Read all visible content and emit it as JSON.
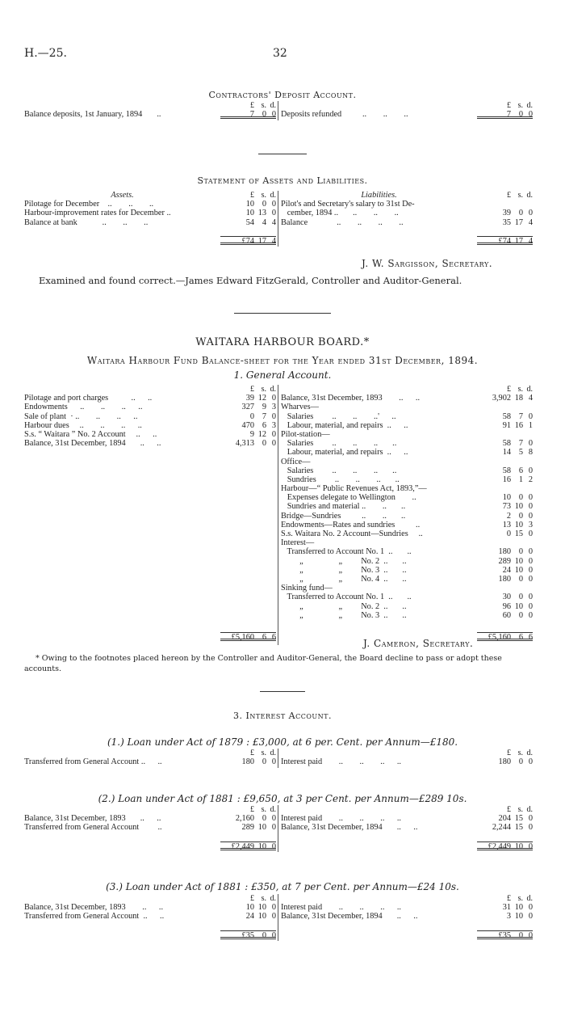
{
  "header": {
    "ref": "H.—25.",
    "page": "32"
  },
  "contractors": {
    "title": "Contractors' Deposit Account.",
    "left": [
      {
        "h": true
      },
      {
        "t": "Balance deposits, 1st January, 1894       ..",
        "a": [
          "7",
          "0",
          "0"
        ],
        "dbl": true
      }
    ],
    "right": [
      {
        "h": true
      },
      {
        "t": "Deposits refunded          ..        ..        ..",
        "a": [
          "7",
          "0",
          "0"
        ],
        "dbl": true
      }
    ]
  },
  "statement": {
    "title": "Statement of Assets and Liabilities.",
    "left": [
      {
        "h": true,
        "t": "Assets."
      },
      {
        "t": "Pilotage for December    ..        ..        ..",
        "a": [
          "10",
          "0",
          "0"
        ]
      },
      {
        "t": "Harbour-improvement rates for December ..",
        "a": [
          "10",
          "13",
          "0"
        ]
      },
      {
        "t": "Balance at bank            ..        ..        ..",
        "a": [
          "54",
          "4",
          "4"
        ]
      },
      {
        "t": ""
      },
      {
        "t": "",
        "a": [
          "£74",
          "17",
          "4"
        ],
        "top": true,
        "dbl": true
      }
    ],
    "right": [
      {
        "h": true,
        "t": "Liabilities."
      },
      {
        "t": "Pilot's and Secretary's salary to 31st De-"
      },
      {
        "t": "   cember, 1894 ..       ..        ..        ..",
        "a": [
          "39",
          "0",
          "0"
        ]
      },
      {
        "t": "Balance              ..        ..        ..        ..",
        "a": [
          "35",
          "17",
          "4"
        ]
      },
      {
        "t": ""
      },
      {
        "t": "",
        "a": [
          "£74",
          "17",
          "4"
        ],
        "top": true,
        "dbl": true
      }
    ],
    "signature": "J. W. Sargisson, Secretary.",
    "examined": "Examined and found correct.—James Edward FitzGerald, Controller and Auditor-General."
  },
  "waitara": {
    "board": "WAITARA HARBOUR BOARD.*",
    "title": "Waitara Harbour Fund Balance-sheet for the Year ended 31st December, 1894.",
    "subtitle": "1. General Account.",
    "left": [
      {
        "h": true
      },
      {
        "t": "Pilotage and port charges           ..      ..",
        "a": [
          "39",
          "12",
          "0"
        ]
      },
      {
        "t": "Endowments      ..        ..        ..      ..",
        "a": [
          "327",
          "9",
          "3"
        ]
      },
      {
        "t": "Sale of plant  · ..        ..        ..      ..",
        "a": [
          "0",
          "7",
          "0"
        ]
      },
      {
        "t": "Harbour dues     ..        ..        ..      ..",
        "a": [
          "470",
          "6",
          "3"
        ]
      },
      {
        "t": "S.s. “ Waitara ” No. 2 Account     ..      ..",
        "a": [
          "9",
          "12",
          "0"
        ]
      },
      {
        "t": "Balance, 31st December, 1894       ..      ..",
        "a": [
          "4,313",
          "0",
          "0"
        ]
      }
    ],
    "right": [
      {
        "h": true
      },
      {
        "t": "Balance, 31st December, 1893        ..      ..",
        "a": [
          "3,902",
          "18",
          "4"
        ]
      },
      {
        "t": "Wharves—"
      },
      {
        "t": "   Salaries         ..        ..        ..'      ..",
        "a": [
          "58",
          "7",
          "0"
        ]
      },
      {
        "t": "   Labour, material, and repairs  ..      ..",
        "a": [
          "91",
          "16",
          "1"
        ]
      },
      {
        "t": "Pilot-station—"
      },
      {
        "t": "   Salaries         ..        ..        ..       ..",
        "a": [
          "58",
          "7",
          "0"
        ]
      },
      {
        "t": "   Labour, material, and repairs  ..      ..",
        "a": [
          "14",
          "5",
          "8"
        ]
      },
      {
        "t": "Office—"
      },
      {
        "t": "   Salaries         ..        ..        ..       ..",
        "a": [
          "58",
          "6",
          "0"
        ]
      },
      {
        "t": "   Sundries         ..        ..        ..       ..",
        "a": [
          "16",
          "1",
          "2"
        ]
      },
      {
        "t": "Harbour—“ Public Revenues Act, 1893,”—"
      },
      {
        "t": "   Expenses delegate to Wellington        ..",
        "a": [
          "10",
          "0",
          "0"
        ]
      },
      {
        "t": "   Sundries and material ..        ..       ..",
        "a": [
          "73",
          "10",
          "0"
        ]
      },
      {
        "t": "Bridge—Sundries          ..        ..       ..",
        "a": [
          "2",
          "0",
          "0"
        ]
      },
      {
        "t": "Endowments—Rates and sundries          ..",
        "a": [
          "13",
          "10",
          "3"
        ]
      },
      {
        "t": "S.s. Waitara No. 2 Account—Sundries     ..",
        "a": [
          "0",
          "15",
          "0"
        ]
      },
      {
        "t": "Interest—"
      },
      {
        "t": "   Transferred to Account No. 1  ..       ..",
        "a": [
          "180",
          "0",
          "0"
        ]
      },
      {
        "t": "         „                 „         No. 2  ..       ..",
        "a": [
          "289",
          "10",
          "0"
        ]
      },
      {
        "t": "         „                 „         No. 3  ..       ..",
        "a": [
          "24",
          "10",
          "0"
        ]
      },
      {
        "t": "         „                 „         No. 4  ..       ..",
        "a": [
          "180",
          "0",
          "0"
        ]
      },
      {
        "t": "Sinking fund—"
      },
      {
        "t": "   Transferred to Account No. 1  ..       ..",
        "a": [
          "30",
          "0",
          "0"
        ]
      },
      {
        "t": "         „                 „         No. 2  ..       ..",
        "a": [
          "96",
          "10",
          "0"
        ]
      },
      {
        "t": "         „                 „         No. 3  ..       ..",
        "a": [
          "60",
          "0",
          "0"
        ]
      }
    ],
    "total_left": [
      "£5,160",
      "6",
      "6"
    ],
    "total_right": [
      "£5,160",
      "6",
      "6"
    ],
    "signature": "J. Cameron, Secretary.",
    "footnote": "* Owing to the footnotes placed hereon by the Controller and Auditor-General, the Board decline to pass or adopt these accounts."
  },
  "interest": {
    "title": "3. Interest Account.",
    "loan1": {
      "title": "(1.) Loan under Act of 1879 : £3,000, at 6 per. Cent. per Annum—£180.",
      "left": [
        {
          "h": true
        },
        {
          "t": "Transferred from General Account ..      ..",
          "a": [
            "180",
            "0",
            "0"
          ]
        }
      ],
      "right": [
        {
          "h": true
        },
        {
          "t": "Interest paid        ..        ..        ..      ..",
          "a": [
            "180",
            "0",
            "0"
          ]
        }
      ]
    },
    "loan2": {
      "title": "(2.) Loan under Act of 1881 : £9,650, at 3 per Cent. per Annum—£289 10s.",
      "left": [
        {
          "h": true
        },
        {
          "t": "Balance, 31st December, 1893       ..      ..",
          "a": [
            "2,160",
            "0",
            "0"
          ]
        },
        {
          "t": "Transferred from General Account         ..",
          "a": [
            "289",
            "10",
            "0"
          ]
        },
        {
          "t": ""
        },
        {
          "t": "",
          "a": [
            "£2,449",
            "10",
            "0"
          ],
          "top": true,
          "dbl": true
        }
      ],
      "right": [
        {
          "h": true
        },
        {
          "t": "Interest paid        ..        ..        ..      ..",
          "a": [
            "204",
            "15",
            "0"
          ]
        },
        {
          "t": "Balance, 31st December, 1894       ..      ..",
          "a": [
            "2,244",
            "15",
            "0"
          ]
        },
        {
          "t": ""
        },
        {
          "t": "",
          "a": [
            "£2,449",
            "10",
            "0"
          ],
          "top": true,
          "dbl": true
        }
      ]
    },
    "loan3": {
      "title": "(3.) Loan under Act of 1881 : £350, at 7 per Cent. per Annum—£24 10s.",
      "left": [
        {
          "h": true
        },
        {
          "t": "Balance, 31st December, 1893        ..      ..",
          "a": [
            "10",
            "10",
            "0"
          ]
        },
        {
          "t": "Transferred from General Account  ..      ..",
          "a": [
            "24",
            "10",
            "0"
          ]
        },
        {
          "t": ""
        },
        {
          "t": "",
          "a": [
            "£35",
            "0",
            "0"
          ],
          "top": true,
          "dbl": true
        }
      ],
      "right": [
        {
          "h": true
        },
        {
          "t": "Interest paid        ..        ..        ..      ..",
          "a": [
            "31",
            "10",
            "0"
          ]
        },
        {
          "t": "Balance, 31st December, 1894       ..      ..",
          "a": [
            "3",
            "10",
            "0"
          ]
        },
        {
          "t": ""
        },
        {
          "t": "",
          "a": [
            "£35",
            "0",
            "0"
          ],
          "top": true,
          "dbl": true
        }
      ]
    }
  },
  "currency_head": [
    "£",
    "s.",
    "d."
  ]
}
